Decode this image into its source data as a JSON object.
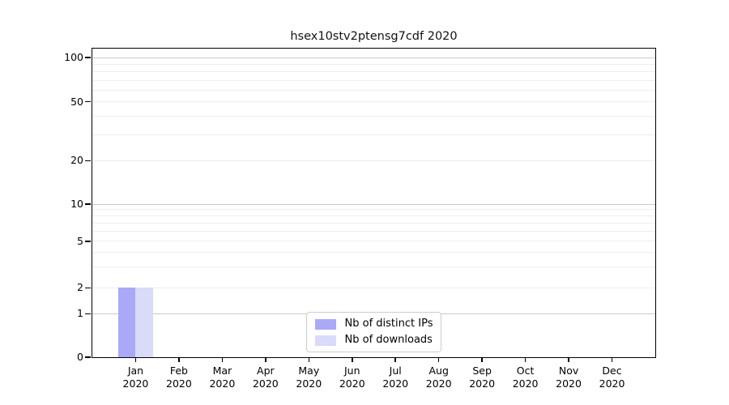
{
  "figure": {
    "title": "hsex10stv2ptensg7cdf 2020"
  },
  "chart_data": {
    "type": "bar",
    "title": "hsex10stv2ptensg7cdf 2020",
    "categories": [
      "Jan 2020",
      "Feb 2020",
      "Mar 2020",
      "Apr 2020",
      "May 2020",
      "Jun 2020",
      "Jul 2020",
      "Aug 2020",
      "Sep 2020",
      "Oct 2020",
      "Nov 2020",
      "Dec 2020"
    ],
    "series": [
      {
        "name": "Nb of distinct IPs",
        "color": "#a9a9f7",
        "values": [
          2,
          0,
          0,
          0,
          0,
          0,
          0,
          0,
          0,
          0,
          0,
          0
        ]
      },
      {
        "name": "Nb of downloads",
        "color": "#dadaf9",
        "values": [
          2,
          0,
          0,
          0,
          0,
          0,
          0,
          0,
          0,
          0,
          0,
          0
        ]
      }
    ],
    "xlabel": "",
    "ylabel": "",
    "yticks": [
      0,
      1,
      2,
      5,
      10,
      20,
      50,
      100
    ],
    "ylim": [
      0,
      110
    ],
    "xlim": [
      -1,
      12
    ],
    "yscale": "log-like",
    "grid": "horizontal",
    "legend_position": "lower center"
  },
  "colors": {
    "spine": "#000000",
    "grid_major": "#c9c9c9",
    "grid_minor": "#ededed",
    "background": "#ffffff",
    "text": "#111111",
    "legend_border": "#cccccc"
  }
}
